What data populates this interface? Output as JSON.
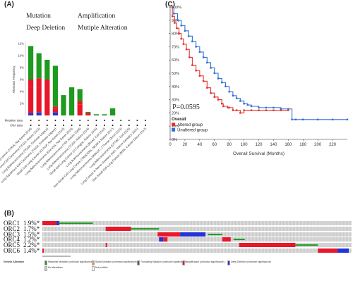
{
  "panels": {
    "a": "(A)",
    "b": "(B)",
    "c": "(C)"
  },
  "legend_words": {
    "mutation": "Mutation",
    "amplification": "Amplification",
    "deep_deletion": "Deep Deletion",
    "multiple_alteration": "Mutiple Alteration"
  },
  "colors": {
    "green": "#1e9a1e",
    "red": "#e8172a",
    "blue": "#2433d6",
    "km_red": "#e5302c",
    "km_blue": "#2f6fd6",
    "grey": "#c9c9c9"
  },
  "chart_data": [
    {
      "type": "bar",
      "ylabel": "Alteration Frequency",
      "y_ticks": [
        "12%",
        "10%",
        "8%",
        "6%",
        "4%",
        "2%"
      ],
      "ylim": [
        0,
        12
      ],
      "row_labels": [
        "Mutation data",
        "CNA data"
      ],
      "categories": [
        "Pan-Lung cancer (TCGA, Nat Genet 2016)",
        "Lung Squamous Cell Carcinoma (TCGA, Nature 2012)",
        "Lung Adenocarcinoma (TCGA, Firehose Legacy)",
        "Lung Squamous Cell Carcinoma (TCGA, Firehose Legacy)",
        "Small Cell Lung Cancer (CLCGP, Nat Genet 2013)",
        "Lung Adenocarcinoma (OncoSG, Nat Genet 2020)",
        "Lung Adenocarcinoma (TSP, Nature 2008)",
        "Lung Adenocarcinoma (TCGA, Nature 2014)",
        "Small Cell Lung Cancer (U Cologne, Nature 2015)",
        "Lung Adenocarcinoma (Broad, Cell 2012)",
        "Non-Small Cell Lung Cancer (TRACERx, NEJM & Nature 2017)",
        "Lung Adenocarcinoma (MSKCC, J Thorac Oncol 2020)",
        "Lung Adenocarcinoma (CPTAC, Cell 2020)",
        "Lung Cancer in Never Smokers (NCI, Nature Genetics 2021)",
        "Non-Small Cell Lung Cancer (MSK, Cancer Discov 2017)"
      ],
      "series": [
        {
          "name": "Mutation",
          "values": [
            5.6,
            4.2,
            3.3,
            6.8,
            3.4,
            4.7,
            2.0,
            0.2,
            0.2,
            0.2,
            1.2,
            0,
            0,
            0,
            0
          ]
        },
        {
          "name": "Amplification",
          "values": [
            4.3,
            4.2,
            3.0,
            0.6,
            0.0,
            0.0,
            1.8,
            0.4,
            0.0,
            0.0,
            0.0,
            0,
            0,
            0,
            0
          ]
        },
        {
          "name": "Deep Deletion",
          "values": [
            0.4,
            0.5,
            0.0,
            0.5,
            0.0,
            0.0,
            0.0,
            0.0,
            0.0,
            0.0,
            0.0,
            0,
            0,
            0,
            0
          ]
        },
        {
          "name": "Mutiple Alteration",
          "values": [
            1.3,
            1.5,
            3.0,
            0.4,
            0.0,
            0.0,
            0.6,
            0.0,
            0.0,
            0.0,
            0.0,
            0,
            0,
            0,
            0
          ]
        }
      ]
    },
    {
      "type": "line",
      "title": "Overall",
      "xlabel": "Overall Survival (Months)",
      "ylabel": "Overall",
      "x_ticks": [
        0,
        20,
        40,
        60,
        80,
        100,
        120,
        140,
        160,
        180,
        200,
        220
      ],
      "y_ticks": [
        "0%",
        "10%",
        "20%",
        "30%",
        "40%",
        "50%",
        "60%",
        "70%",
        "80%",
        "90%",
        "100%"
      ],
      "xlim": [
        0,
        240
      ],
      "ylim": [
        0,
        100
      ],
      "annotation": "P=0.0595",
      "legend_title": "Overall",
      "series": [
        {
          "name": "Altered group",
          "points": [
            [
              0,
              100
            ],
            [
              3,
              93
            ],
            [
              6,
              88
            ],
            [
              9,
              84
            ],
            [
              12,
              80
            ],
            [
              15,
              76
            ],
            [
              18,
              72
            ],
            [
              22,
              68
            ],
            [
              26,
              62
            ],
            [
              30,
              56
            ],
            [
              35,
              52
            ],
            [
              40,
              48
            ],
            [
              45,
              44
            ],
            [
              50,
              39
            ],
            [
              55,
              35
            ],
            [
              60,
              32
            ],
            [
              65,
              30
            ],
            [
              70,
              27
            ],
            [
              72,
              25
            ],
            [
              78,
              24
            ],
            [
              80,
              24
            ],
            [
              85,
              22
            ],
            [
              90,
              22
            ],
            [
              95,
              20
            ],
            [
              100,
              22
            ],
            [
              110,
              22
            ],
            [
              120,
              22
            ],
            [
              130,
              22
            ],
            [
              140,
              22
            ],
            [
              150,
              22
            ],
            [
              160,
              22
            ]
          ]
        },
        {
          "name": "Unaltered group",
          "points": [
            [
              0,
              100
            ],
            [
              5,
              95
            ],
            [
              10,
              90
            ],
            [
              15,
              86
            ],
            [
              20,
              82
            ],
            [
              25,
              78
            ],
            [
              30,
              74
            ],
            [
              35,
              70
            ],
            [
              40,
              66
            ],
            [
              45,
              62
            ],
            [
              50,
              58
            ],
            [
              55,
              54
            ],
            [
              60,
              50
            ],
            [
              65,
              46
            ],
            [
              70,
              43
            ],
            [
              75,
              40
            ],
            [
              80,
              36
            ],
            [
              85,
              33
            ],
            [
              90,
              31
            ],
            [
              95,
              29
            ],
            [
              100,
              27
            ],
            [
              105,
              26
            ],
            [
              110,
              25
            ],
            [
              120,
              24
            ],
            [
              130,
              24
            ],
            [
              140,
              24
            ],
            [
              150,
              23
            ],
            [
              160,
              23
            ],
            [
              165,
              15
            ],
            [
              170,
              15
            ],
            [
              180,
              15
            ],
            [
              200,
              15
            ],
            [
              220,
              15
            ],
            [
              240,
              15
            ]
          ]
        }
      ]
    }
  ],
  "oncoprint": {
    "genes": [
      {
        "name": "ORC1",
        "pct": "1.9%*"
      },
      {
        "name": "ORC2",
        "pct": "1.7%*"
      },
      {
        "name": "ORC3",
        "pct": "1.5%*"
      },
      {
        "name": "ORC4",
        "pct": "1.2%*"
      },
      {
        "name": "ORC5",
        "pct": "2.2%*"
      },
      {
        "name": "ORC6",
        "pct": "1.4%*"
      }
    ],
    "legend_title": "Genetic Alteration",
    "legend_items": [
      {
        "label": "Missense Mutation (unknown significance)",
        "color": "#1e9a1e"
      },
      {
        "label": "Splice Mutation (unknown significance)",
        "color": "#e0a060"
      },
      {
        "label": "Truncating Mutation (unknown significance)",
        "color": "#555555"
      },
      {
        "label": "Amplification (unknown significance)",
        "color": "#e8172a"
      },
      {
        "label": "Deep Deletion (unknown significance)",
        "color": "#2433d6"
      },
      {
        "label": "No alterations",
        "color": "#c9c9c9"
      },
      {
        "label": "Not profiled",
        "color": "#ffffff"
      }
    ]
  }
}
